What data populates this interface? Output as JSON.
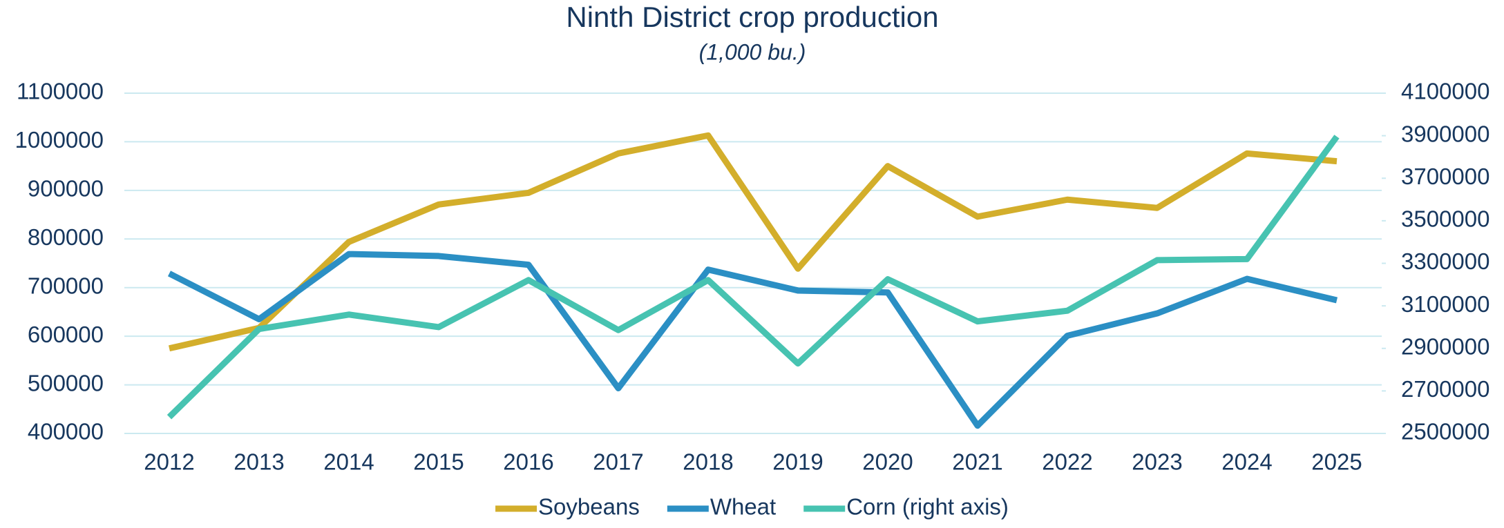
{
  "chart_data": {
    "type": "line",
    "title": "Ninth District crop production",
    "subtitle": "(1,000 bu.)",
    "categories": [
      "2012",
      "2013",
      "2014",
      "2015",
      "2016",
      "2017",
      "2018",
      "2019",
      "2020",
      "2021",
      "2022",
      "2023",
      "2024",
      "2025"
    ],
    "series": [
      {
        "name": "Soybeans",
        "color": "#d3ae2b",
        "values": [
          575000,
          617000,
          794000,
          871000,
          895000,
          976000,
          1013000,
          739000,
          950000,
          846000,
          881000,
          864000,
          976000,
          960000
        ]
      },
      {
        "name": "Wheat",
        "color": "#2b8fc4",
        "values": [
          729000,
          635000,
          769000,
          765000,
          747000,
          493000,
          737000,
          694000,
          690000,
          416000,
          601000,
          647000,
          718000,
          674000
        ]
      },
      {
        "name": "Corn (right axis)",
        "color": "#47c3b1",
        "axis": "y2",
        "values": [
          2577000,
          2991000,
          3059000,
          3000000,
          3221000,
          2986000,
          3221000,
          2829000,
          3225000,
          3027000,
          3077000,
          3315000,
          3320000,
          3896000
        ]
      }
    ],
    "ylim": [
      400000,
      1100000
    ],
    "yticks": [
      400000,
      500000,
      600000,
      700000,
      800000,
      900000,
      1000000,
      1100000
    ],
    "y2lim": [
      2500000,
      4100000
    ],
    "y2ticks": [
      2500000,
      2700000,
      2900000,
      3100000,
      3300000,
      3500000,
      3700000,
      3900000,
      4100000
    ],
    "grid": true,
    "legend": "bottom"
  }
}
